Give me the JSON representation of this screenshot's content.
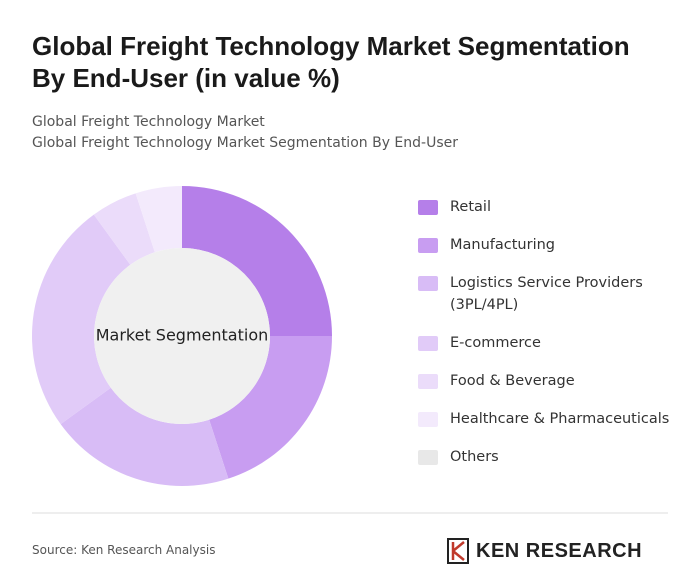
{
  "chart_data": {
    "type": "donut",
    "title": "Global Freight Technology Market Segmentation By End-User (in value %)",
    "subtitle": [
      "Global Freight Technology Market",
      "Global Freight Technology Market Segmentation By End-User"
    ],
    "center_label": "Market Segmentation",
    "categories": [
      "Retail",
      "Manufacturing",
      "Logistics Service Providers (3PL/4PL)",
      "E-commerce",
      "Food & Beverage",
      "Healthcare & Pharmaceuticals",
      "Others"
    ],
    "values": [
      25,
      20,
      20,
      25,
      5,
      5,
      0
    ],
    "colors": [
      "#b57fe9",
      "#c89df1",
      "#d8bcf6",
      "#e1cbf8",
      "#ebdcfa",
      "#f3eafc",
      "#e8e8e8"
    ],
    "source": "Source: Ken Research Analysis"
  },
  "brand": "KEN RESEARCH"
}
